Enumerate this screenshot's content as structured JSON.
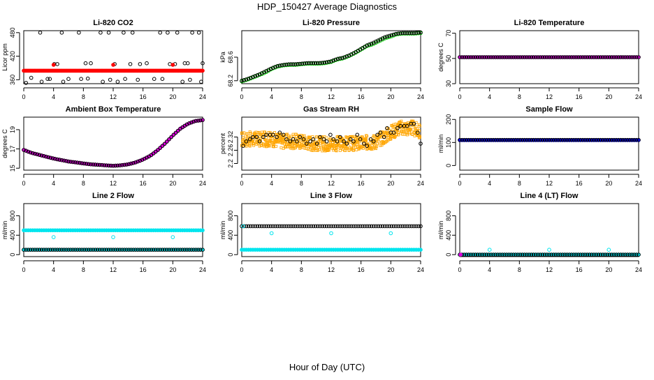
{
  "figure": {
    "title": "HDP_150427  Average Diagnostics",
    "xlabel": "Hour of Day (UTC)"
  },
  "colors": {
    "black": "#000000",
    "red": "#ff0000",
    "green": "#00cc00",
    "magenta": "#dd00dd",
    "orange": "#ffa500",
    "blue": "#0000ff",
    "cyan": "#00e5ee"
  },
  "chart_data": [
    {
      "type": "scatter",
      "title": "Li-820 CO2",
      "ylabel": "Licor ppm",
      "xlim": [
        0,
        24
      ],
      "ylim": [
        350,
        485
      ],
      "xticks": [
        0,
        4,
        8,
        12,
        16,
        20,
        24
      ],
      "yticks": [
        360,
        420,
        480
      ],
      "series": [
        {
          "color": "#ff0000",
          "filled": true,
          "pattern": "dense",
          "x": [
            0,
            24
          ],
          "y": [
            383,
            383
          ]
        },
        {
          "color": "#000000",
          "filled": false,
          "x": [
            0.3,
            2.2,
            2.4,
            3.2,
            4.1,
            4.5,
            5.1,
            5.3,
            7.4,
            7.7,
            8.3,
            8.6,
            10.3,
            10.6,
            11.4,
            11.6,
            12.2,
            12.6,
            13.4,
            13.6,
            14.3,
            14.6,
            15.3,
            15.6,
            18.3,
            18.6,
            19.3,
            19.6,
            20.3,
            20.6,
            21.3,
            21.6,
            22.3,
            22.6,
            23.5,
            23.8,
            1.0,
            3.5,
            6.0,
            9.0,
            16.5,
            17.5,
            22.0,
            24.0
          ],
          "y": [
            352,
            480,
            355,
            362,
            400,
            400,
            480,
            355,
            480,
            362,
            402,
            363,
            480,
            355,
            480,
            360,
            400,
            355,
            480,
            362,
            400,
            480,
            360,
            400,
            480,
            362,
            480,
            400,
            400,
            480,
            355,
            402,
            360,
            480,
            480,
            355,
            365,
            362,
            362,
            402,
            402,
            362,
            402,
            402
          ]
        },
        {
          "color": "#ff0000",
          "filled": true,
          "x": [
            4.0,
            12.0,
            20.0
          ],
          "y": [
            398,
            398,
            398
          ]
        }
      ]
    },
    {
      "type": "scatter",
      "title": "Li-820 Pressure",
      "ylabel": "kPa",
      "xlim": [
        0,
        24
      ],
      "ylim": [
        68.15,
        69.05
      ],
      "xticks": [
        0,
        4,
        8,
        12,
        16,
        20,
        24
      ],
      "yticks": [
        68.2,
        68.6
      ],
      "series": [
        {
          "color": "#00cc00",
          "filled": false,
          "curve": true,
          "x": [
            0,
            0.8,
            1.6,
            2.4,
            3.2,
            4,
            4.8,
            5.6,
            6.4,
            7.2,
            8,
            8.8,
            9.6,
            10.4,
            11.2,
            12,
            12.8,
            13.6,
            14.4,
            15.2,
            16,
            16.8,
            17.6,
            18.4,
            19.2,
            20,
            20.8,
            21.6,
            22.4,
            23.2,
            24
          ],
          "y": [
            68.19,
            68.22,
            68.26,
            68.3,
            68.34,
            68.4,
            68.44,
            68.46,
            68.47,
            68.47,
            68.48,
            68.49,
            68.49,
            68.49,
            68.5,
            68.52,
            68.56,
            68.58,
            68.62,
            68.67,
            68.73,
            68.79,
            68.82,
            68.87,
            68.92,
            68.95,
            68.99,
            69.0,
            69.0,
            69.0,
            69.01
          ]
        },
        {
          "color": "#000000",
          "filled": false,
          "curve": true,
          "x": [
            0,
            0.8,
            1.6,
            2.4,
            3.2,
            4,
            4.8,
            5.6,
            6.4,
            7.2,
            8,
            8.8,
            9.6,
            10.4,
            11.2,
            12,
            12.8,
            13.6,
            14.4,
            15.2,
            16,
            16.8,
            17.6,
            18.4,
            19.2,
            20,
            20.8,
            21.6,
            22.4,
            23.2,
            24
          ],
          "y": [
            68.2,
            68.23,
            68.27,
            68.31,
            68.36,
            68.41,
            68.45,
            68.47,
            68.48,
            68.48,
            68.49,
            68.5,
            68.5,
            68.5,
            68.51,
            68.53,
            68.57,
            68.59,
            68.63,
            68.68,
            68.74,
            68.8,
            68.84,
            68.89,
            68.94,
            68.97,
            69.0,
            69.01,
            69.01,
            69.01,
            69.02
          ]
        }
      ]
    },
    {
      "type": "scatter",
      "title": "Li-820 Temperature",
      "ylabel": "degrees C",
      "xlim": [
        0,
        24
      ],
      "ylim": [
        30,
        72
      ],
      "xticks": [
        0,
        4,
        8,
        12,
        16,
        20,
        24
      ],
      "yticks": [
        30,
        50,
        70
      ],
      "series": [
        {
          "color": "#dd00dd",
          "filled": true,
          "x": [
            0,
            24
          ],
          "y": [
            51,
            51
          ]
        },
        {
          "color": "#000000",
          "filled": false,
          "x": [
            0,
            24
          ],
          "y": [
            51,
            51
          ]
        }
      ]
    },
    {
      "type": "scatter",
      "title": "Ambient Box Temperature",
      "ylabel": "degrees C",
      "xlim": [
        0,
        24
      ],
      "ylim": [
        14.8,
        20.3
      ],
      "xticks": [
        0,
        4,
        8,
        12,
        16,
        20,
        24
      ],
      "yticks": [
        15,
        17,
        19
      ],
      "series": [
        {
          "color": "#dd00dd",
          "filled": true,
          "curve": true,
          "x": [
            0,
            1,
            2,
            3,
            4,
            5,
            6,
            7,
            8,
            9,
            10,
            11,
            12,
            13,
            14,
            15,
            16,
            17,
            18,
            19,
            20,
            21,
            22,
            23,
            24
          ],
          "y": [
            16.9,
            16.6,
            16.4,
            16.2,
            16.0,
            15.85,
            15.7,
            15.6,
            15.5,
            15.4,
            15.35,
            15.3,
            15.25,
            15.3,
            15.4,
            15.6,
            15.9,
            16.3,
            16.9,
            17.6,
            18.4,
            19.1,
            19.6,
            19.9,
            20.0
          ]
        },
        {
          "color": "#000000",
          "filled": false,
          "curve": true,
          "x": [
            0,
            1,
            2,
            3,
            4,
            5,
            6,
            7,
            8,
            9,
            10,
            11,
            12,
            13,
            14,
            15,
            16,
            17,
            18,
            19,
            20,
            21,
            22,
            23,
            24
          ],
          "y": [
            16.9,
            16.6,
            16.4,
            16.2,
            16.0,
            15.85,
            15.7,
            15.6,
            15.5,
            15.4,
            15.35,
            15.3,
            15.25,
            15.3,
            15.4,
            15.6,
            15.9,
            16.3,
            16.9,
            17.6,
            18.4,
            19.1,
            19.6,
            19.9,
            20.0
          ]
        }
      ]
    },
    {
      "type": "scatter",
      "title": "Gas Stream RH",
      "ylabel": "percent",
      "xlim": [
        0,
        24
      ],
      "ylim": [
        2.17,
        2.41
      ],
      "xticks": [
        0,
        4,
        8,
        12,
        16,
        20,
        24
      ],
      "yticks": [
        2.2,
        2.26,
        2.32
      ],
      "series": [
        {
          "color": "#ffa500",
          "filled": false,
          "pattern": "cloud",
          "x": [
            0,
            2,
            4,
            6,
            8,
            10,
            12,
            14,
            16,
            18,
            19,
            20,
            21,
            22,
            23,
            24
          ],
          "y": [
            2.31,
            2.31,
            2.31,
            2.3,
            2.3,
            2.29,
            2.29,
            2.29,
            2.29,
            2.3,
            2.32,
            2.34,
            2.36,
            2.36,
            2.36,
            2.34
          ]
        },
        {
          "color": "#000000",
          "filled": false,
          "x": [
            0.2,
            0.6,
            1.1,
            1.5,
            2.0,
            2.4,
            2.9,
            3.3,
            3.8,
            4.2,
            4.7,
            5.1,
            5.6,
            6.0,
            6.5,
            6.9,
            7.4,
            7.8,
            8.3,
            8.7,
            9.2,
            9.6,
            10.1,
            10.5,
            11.0,
            11.4,
            11.9,
            12.3,
            12.8,
            13.2,
            13.7,
            14.1,
            14.6,
            15.0,
            15.5,
            15.9,
            16.4,
            16.8,
            17.3,
            17.7,
            18.2,
            18.6,
            19.1,
            19.5,
            20.0,
            20.4,
            20.9,
            21.3,
            21.8,
            22.2,
            22.7,
            23.1,
            23.6,
            24.0
          ],
          "y": [
            2.28,
            2.3,
            2.31,
            2.32,
            2.32,
            2.3,
            2.32,
            2.33,
            2.33,
            2.33,
            2.32,
            2.34,
            2.33,
            2.31,
            2.3,
            2.31,
            2.3,
            2.32,
            2.31,
            2.29,
            2.3,
            2.31,
            2.29,
            2.32,
            2.31,
            2.3,
            2.33,
            2.31,
            2.3,
            2.32,
            2.3,
            2.29,
            2.31,
            2.3,
            2.33,
            2.31,
            2.29,
            2.28,
            2.31,
            2.3,
            2.33,
            2.34,
            2.32,
            2.36,
            2.34,
            2.34,
            2.36,
            2.37,
            2.37,
            2.37,
            2.38,
            2.38,
            2.34,
            2.29
          ]
        }
      ]
    },
    {
      "type": "scatter",
      "title": "Sample Flow",
      "ylabel": "ml/min",
      "xlim": [
        0,
        24
      ],
      "ylim": [
        -20,
        210
      ],
      "xticks": [
        0,
        4,
        8,
        12,
        16,
        20,
        24
      ],
      "yticks": [
        0,
        100,
        200
      ],
      "series": [
        {
          "color": "#0000ff",
          "filled": true,
          "x": [
            0,
            24
          ],
          "y": [
            110,
            110
          ]
        },
        {
          "color": "#000000",
          "filled": false,
          "x": [
            0,
            24
          ],
          "y": [
            111,
            111
          ]
        }
      ]
    },
    {
      "type": "scatter",
      "title": "Line 2 Flow",
      "ylabel": "ml/min",
      "xlim": [
        0,
        24
      ],
      "ylim": [
        -40,
        1050
      ],
      "xticks": [
        0,
        4,
        8,
        12,
        16,
        20,
        24
      ],
      "yticks": [
        0,
        400,
        800
      ],
      "series": [
        {
          "color": "#00e5ee",
          "filled": true,
          "x": [
            0,
            24
          ],
          "y": [
            500,
            500
          ]
        },
        {
          "color": "#00e5ee",
          "filled": true,
          "x": [
            0,
            24
          ],
          "y": [
            100,
            100
          ]
        },
        {
          "color": "#000000",
          "filled": false,
          "x": [
            0,
            24
          ],
          "y": [
            100,
            100
          ]
        },
        {
          "color": "#00e5ee",
          "filled": false,
          "x": [
            4,
            12,
            20
          ],
          "y": [
            360,
            360,
            360
          ]
        }
      ]
    },
    {
      "type": "scatter",
      "title": "Line 3 Flow",
      "ylabel": "ml/min",
      "xlim": [
        0,
        24
      ],
      "ylim": [
        -40,
        1050
      ],
      "xticks": [
        0,
        4,
        8,
        12,
        16,
        20,
        24
      ],
      "yticks": [
        0,
        400,
        800
      ],
      "series": [
        {
          "color": "#00e5ee",
          "filled": true,
          "x": [
            0,
            24
          ],
          "y": [
            100,
            100
          ]
        },
        {
          "color": "#000000",
          "filled": false,
          "x": [
            0,
            24
          ],
          "y": [
            585,
            585
          ]
        },
        {
          "color": "#00e5ee",
          "filled": false,
          "x": [
            0.2,
            4,
            12,
            20
          ],
          "y": [
            585,
            440,
            440,
            440
          ]
        }
      ]
    },
    {
      "type": "scatter",
      "title": "Line 4 (LT) Flow",
      "ylabel": "ml/min",
      "xlim": [
        0,
        24
      ],
      "ylim": [
        -40,
        1050
      ],
      "xticks": [
        0,
        4,
        8,
        12,
        16,
        20,
        24
      ],
      "yticks": [
        0,
        400,
        800
      ],
      "series": [
        {
          "color": "#00e5ee",
          "filled": true,
          "x": [
            0,
            24
          ],
          "y": [
            0,
            0
          ]
        },
        {
          "color": "#000000",
          "filled": false,
          "x": [
            0,
            24
          ],
          "y": [
            0,
            0
          ]
        },
        {
          "color": "#00e5ee",
          "filled": false,
          "x": [
            4,
            12,
            20
          ],
          "y": [
            100,
            100,
            100
          ]
        },
        {
          "color": "#dd00dd",
          "filled": true,
          "x": [
            0.1
          ],
          "y": [
            0
          ]
        }
      ]
    }
  ]
}
